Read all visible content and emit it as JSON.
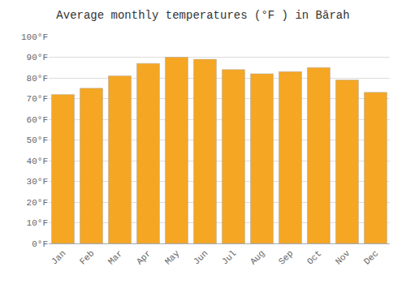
{
  "chart_data": {
    "type": "bar",
    "title": "Average monthly temperatures (°F ) in Bārah",
    "categories": [
      "Jan",
      "Feb",
      "Mar",
      "Apr",
      "May",
      "Jun",
      "Jul",
      "Aug",
      "Sep",
      "Oct",
      "Nov",
      "Dec"
    ],
    "values": [
      72,
      75,
      81,
      87,
      90,
      89,
      84,
      82,
      83,
      85,
      79,
      73
    ],
    "color": "#F5A623",
    "ylim": [
      0,
      100
    ],
    "yticks": [
      {
        "value": 0,
        "label": "0°F"
      },
      {
        "value": 10,
        "label": "10°F"
      },
      {
        "value": 20,
        "label": "20°F"
      },
      {
        "value": 30,
        "label": "30°F"
      },
      {
        "value": 40,
        "label": "40°F"
      },
      {
        "value": 50,
        "label": "50°F"
      },
      {
        "value": 60,
        "label": "60°F"
      },
      {
        "value": 70,
        "label": "70°F"
      },
      {
        "value": 80,
        "label": "80°F"
      },
      {
        "value": 90,
        "label": "90°F"
      },
      {
        "value": 100,
        "label": "100°F"
      }
    ],
    "grid": true
  }
}
